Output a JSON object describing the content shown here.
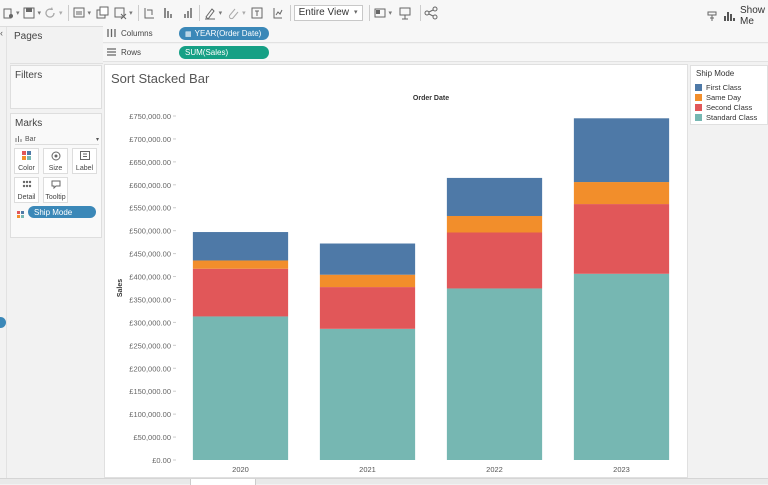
{
  "toolbar": {
    "view_mode": "Entire View",
    "show_me_label": "Show Me"
  },
  "shelves": {
    "columns_label": "Columns",
    "columns_pill": "YEAR(Order Date)",
    "rows_label": "Rows",
    "rows_pill": "SUM(Sales)"
  },
  "sidebar": {
    "pages_title": "Pages",
    "filters_title": "Filters",
    "marks_title": "Marks",
    "mark_type": "Bar",
    "mark_buttons": [
      "Color",
      "Size",
      "Label",
      "Detail",
      "Tooltip"
    ],
    "mark_field": "Ship Mode"
  },
  "sheet": {
    "title": "Sort Stacked Bar"
  },
  "legend": {
    "title": "Ship Mode",
    "items": [
      {
        "label": "First Class",
        "color": "#4e79a7"
      },
      {
        "label": "Same Day",
        "color": "#f28e2b"
      },
      {
        "label": "Second Class",
        "color": "#e15759"
      },
      {
        "label": "Standard Class",
        "color": "#76b7b2"
      }
    ]
  },
  "colors": {
    "columns_pill": "#3b88b8",
    "rows_pill": "#16a085",
    "field_pill": "#3b88b8"
  },
  "chart_data": {
    "type": "bar",
    "stacked": true,
    "title": "",
    "xlabel": "Order Date",
    "ylabel": "Sales",
    "categories": [
      "2020",
      "2021",
      "2022",
      "2023"
    ],
    "ylim": [
      0,
      750000
    ],
    "yticks": [
      "£0.00",
      "£50,000.00",
      "£100,000.00",
      "£150,000.00",
      "£200,000.00",
      "£250,000.00",
      "£300,000.00",
      "£350,000.00",
      "£400,000.00",
      "£450,000.00",
      "£500,000.00",
      "£550,000.00",
      "£600,000.00",
      "£650,000.00",
      "£700,000.00",
      "£750,000.00"
    ],
    "grid": false,
    "legend_position": "top-right",
    "series": [
      {
        "name": "Standard Class",
        "color": "#76b7b2",
        "values": [
          313000,
          286000,
          374000,
          406000
        ]
      },
      {
        "name": "Second Class",
        "color": "#e15759",
        "values": [
          104000,
          91000,
          122000,
          152000
        ]
      },
      {
        "name": "Same Day",
        "color": "#f28e2b",
        "values": [
          18000,
          27000,
          36000,
          48000
        ]
      },
      {
        "name": "First Class",
        "color": "#4e79a7",
        "values": [
          62000,
          68000,
          83000,
          139000
        ]
      }
    ]
  }
}
